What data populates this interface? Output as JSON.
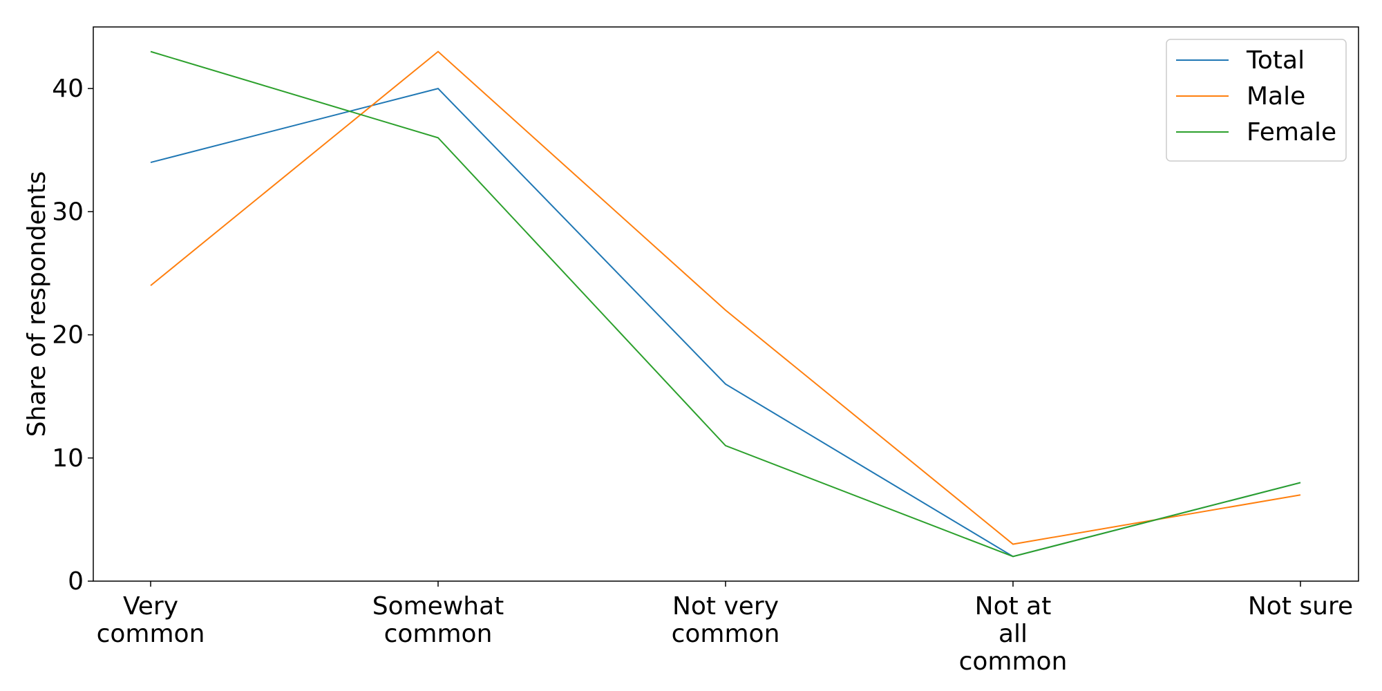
{
  "chart_data": {
    "type": "line",
    "title": "",
    "xlabel": "",
    "ylabel": "Share of respondents",
    "categories": [
      [
        "Very",
        "common"
      ],
      [
        "Somewhat",
        "common"
      ],
      [
        "Not very",
        "common"
      ],
      [
        "Not at",
        "all",
        "common"
      ],
      [
        "Not sure"
      ]
    ],
    "ylim": [
      0,
      45
    ],
    "yticks": [
      0,
      10,
      20,
      30,
      40
    ],
    "grid": false,
    "legend_position": "top-right",
    "series": [
      {
        "name": "Total",
        "color": "#1f77b4",
        "values": [
          34,
          40,
          16,
          2,
          8
        ]
      },
      {
        "name": "Male",
        "color": "#ff7f0e",
        "values": [
          24,
          43,
          22,
          3,
          7
        ]
      },
      {
        "name": "Female",
        "color": "#2ca02c",
        "values": [
          43,
          36,
          11,
          2,
          8
        ]
      }
    ]
  }
}
